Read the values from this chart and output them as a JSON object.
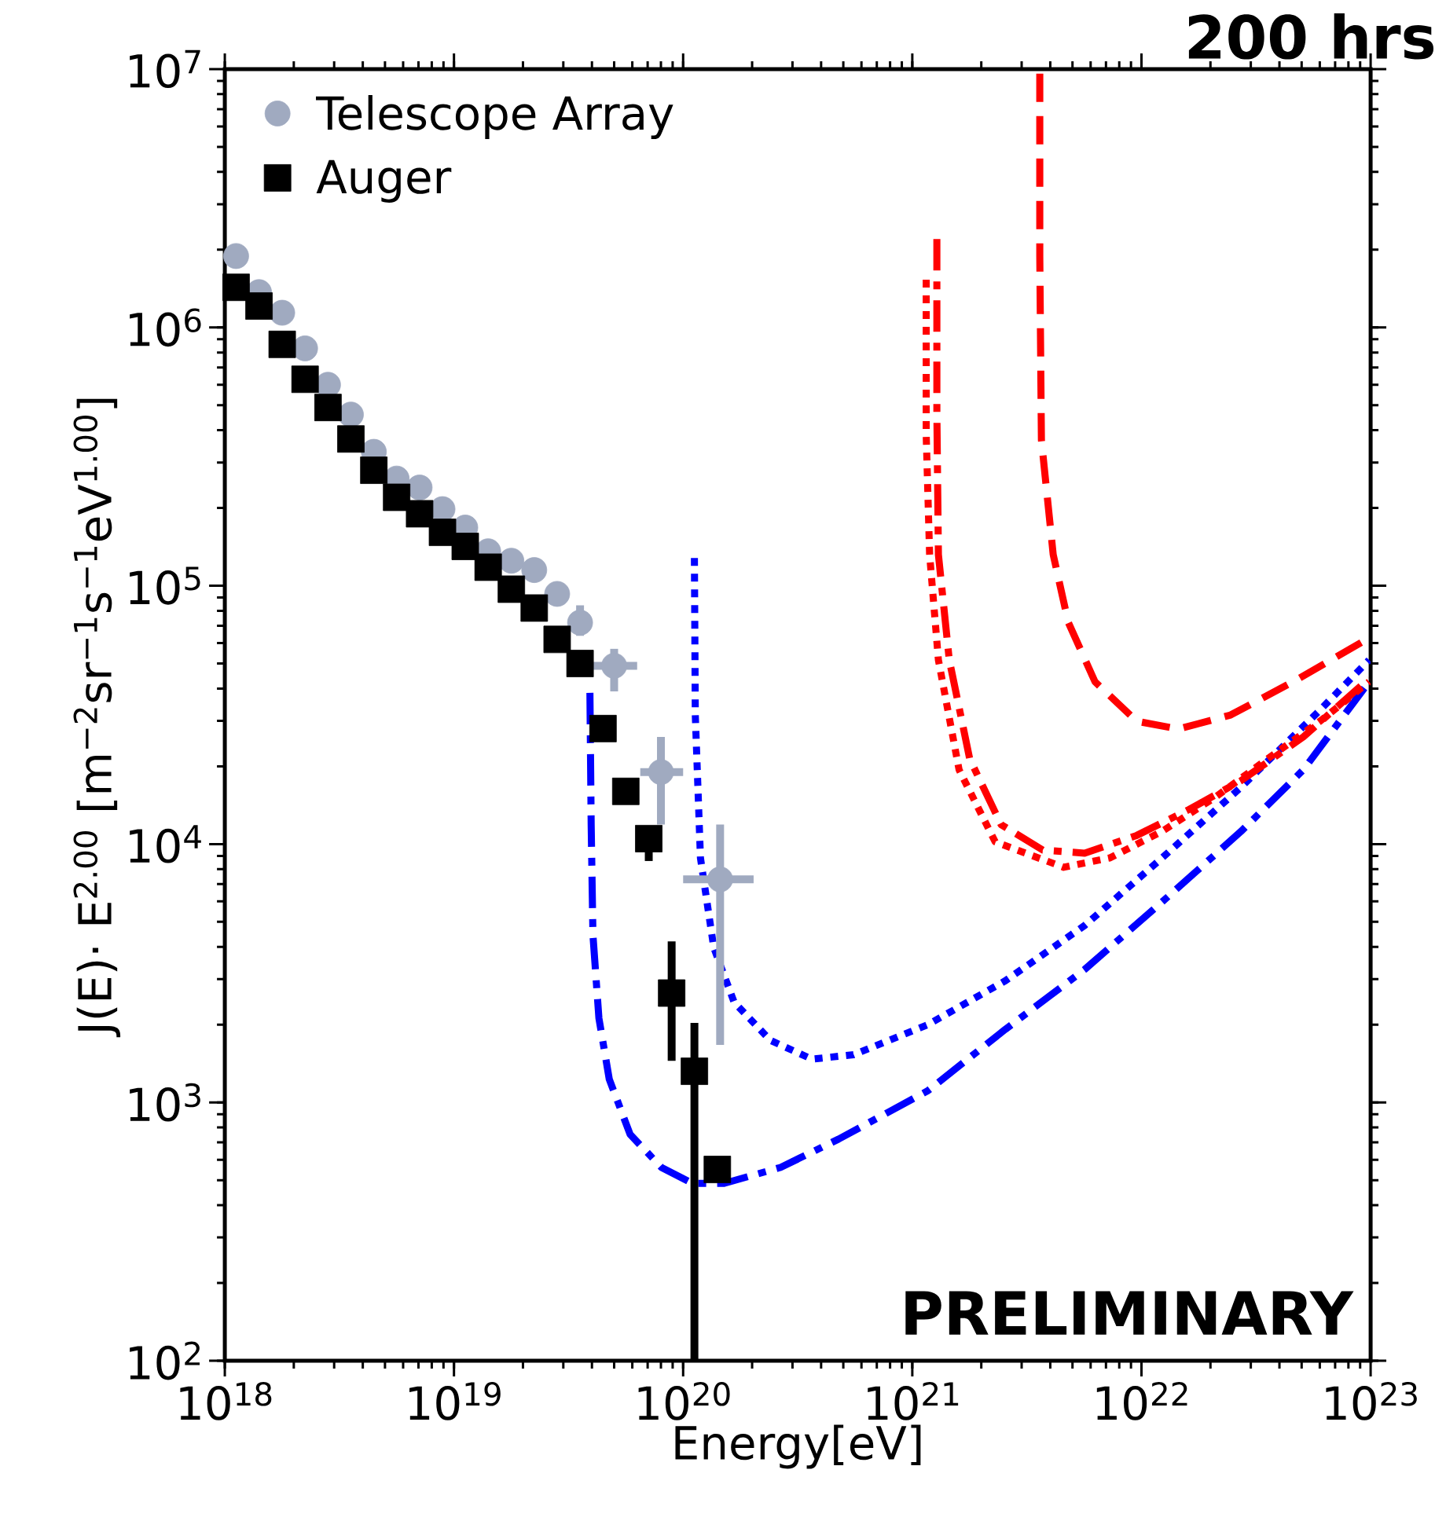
{
  "chart_data": {
    "type": "line",
    "title": "200 hrs",
    "xlabel": "Energy[eV]",
    "ylabel": "J(E)· E$^{2.00}$ [m$^{−2}$sr$^{−1}$s$^{−1}$eV$^{1.00}$]",
    "log": "xy",
    "legend": "top left",
    "xlim": [
      1e+18,
      1e+23
    ],
    "ylim": [
      100,
      10000000.0
    ],
    "xticks": [
      {
        "value": 1e+18,
        "label": "10$^{18}$"
      },
      {
        "value": 1e+19,
        "label": "10$^{19}$"
      },
      {
        "value": 1e+20,
        "label": "10$^{20}$"
      },
      {
        "value": 1e+21,
        "label": "10$^{21}$"
      },
      {
        "value": 1e+22,
        "label": "10$^{22}$"
      },
      {
        "value": 1e+23,
        "label": "10$^{23}$"
      }
    ],
    "yticks": [
      {
        "value": 100,
        "label": "10$^{2}$"
      },
      {
        "value": 1000,
        "label": "10$^{3}$"
      },
      {
        "value": 10000,
        "label": "10$^{4}$"
      },
      {
        "value": 100000,
        "label": "10$^{5}$"
      },
      {
        "value": 1000000,
        "label": "10$^{6}$"
      },
      {
        "value": 10000000,
        "label": "10$^{7}$"
      }
    ],
    "annotations": [
      "PRELIMINARY"
    ],
    "series": [
      {
        "name": "Telescope Array",
        "type": "scatter",
        "marker": "circle",
        "color": "#a0aac0",
        "x": [
          1.12e+18,
          1.41e+18,
          1.78e+18,
          2.24e+18,
          2.82e+18,
          3.55e+18,
          4.47e+18,
          5.62e+18,
          7.08e+18,
          8.91e+18,
          1.12e+19,
          1.41e+19,
          1.78e+19,
          2.24e+19,
          2.82e+19,
          3.55e+19,
          5e+19,
          8e+19,
          1.45e+20
        ],
        "values": [
          1890000.0,
          1370000.0,
          1140000.0,
          830000.0,
          600000.0,
          460000.0,
          330000.0,
          260000.0,
          240000.0,
          198000.0,
          168000.0,
          136000.0,
          125000.0,
          115000.0,
          93000.0,
          72000.0,
          49000.0,
          19000.0,
          7300.0
        ],
        "errors": [
          null,
          null,
          null,
          null,
          null,
          null,
          null,
          null,
          null,
          null,
          null,
          null,
          null,
          null,
          null,
          [
            64000.0,
            84000.0
          ],
          [
            39000.0,
            57000.0
          ],
          [
            11900.0,
            26000.0
          ],
          [
            1670.0,
            11900.0
          ]
        ],
        "xerrors": [
          null,
          null,
          null,
          null,
          null,
          null,
          null,
          null,
          null,
          null,
          null,
          null,
          null,
          null,
          null,
          null,
          [
            3.97e+19,
            6.3e+19
          ],
          [
            6.5e+19,
            1e+20
          ],
          [
            1e+20,
            2.03e+20
          ]
        ]
      },
      {
        "name": "Auger",
        "type": "scatter",
        "marker": "square",
        "color": "#000000",
        "x": [
          1.12e+18,
          1.41e+18,
          1.78e+18,
          2.24e+18,
          2.82e+18,
          3.55e+18,
          4.47e+18,
          5.62e+18,
          7.08e+18,
          8.91e+18,
          1.12e+19,
          1.41e+19,
          1.78e+19,
          2.24e+19,
          2.82e+19,
          3.55e+19,
          4.47e+19,
          5.62e+19,
          7.08e+19,
          8.91e+19,
          1.12e+20,
          1.41e+20
        ],
        "values": [
          1430000.0,
          1210000.0,
          860000.0,
          630000.0,
          490000.0,
          370000.0,
          280000.0,
          220000.0,
          190000.0,
          161000.0,
          142000.0,
          118000.0,
          97000.0,
          82000.0,
          62000.0,
          50000.0,
          28000.0,
          16000.0,
          10500.0,
          2650.0,
          1320.0,
          550
        ],
        "errors": [
          null,
          null,
          null,
          null,
          null,
          null,
          null,
          null,
          null,
          null,
          null,
          null,
          null,
          null,
          null,
          null,
          null,
          null,
          [
            8600.0,
            11500.0
          ],
          [
            1450.0,
            4200.0
          ],
          [
            100,
            2030.0
          ],
          null
        ]
      },
      {
        "line_style": "dashdot",
        "color": "#0000ff",
        "x": [
          3.92e+19,
          3.97e+19,
          4.04e+19,
          4.29e+19,
          4.76e+19,
          5.87e+19,
          8.04e+19,
          1.1e+20,
          1.51e+20,
          2.66e+20,
          4.77e+20,
          1.17e+21,
          2.55e+21,
          5.65e+21,
          1.23e+22,
          2.72e+22,
          5.09e+22,
          9.85e+22
        ],
        "values": [
          38500.0,
          11900.0,
          4450.0,
          2120.0,
          1230.0,
          752,
          560,
          486,
          486,
          560,
          721,
          1110.0,
          1920.0,
          3270.0,
          5970.0,
          11200.0,
          19400.0,
          42500.0
        ]
      },
      {
        "line_style": "dotted",
        "color": "#0000ff",
        "x": [
          1.12e+20,
          1.13e+20,
          1.19e+20,
          1.36e+20,
          1.67e+20,
          2.4e+20,
          3.65e+20,
          5.54e+20,
          1.17e+21,
          2.55e+21,
          5.65e+21,
          1.23e+22,
          2.72e+22,
          6.01e+22,
          9.85e+22
        ],
        "values": [
          128000.0,
          31600.0,
          8840.0,
          3980.0,
          2440.0,
          1740.0,
          1470.0,
          1530.0,
          2000.0,
          2960.0,
          4840.0,
          8840.0,
          16600.0,
          33000.0,
          51600.0
        ]
      },
      {
        "line_style": "dashed",
        "color": "#ff0000",
        "x": [
          3.6e+21,
          3.6e+21,
          3.66e+21,
          4.12e+21,
          4.79e+21,
          6.27e+21,
          9.53e+21,
          1.45e+22,
          2.45e+22,
          4.59e+22,
          9.85e+22
        ],
        "values": [
          9600000.0,
          1890000.0,
          367000.0,
          132000.0,
          72300.0,
          42500.0,
          29900.0,
          27900.0,
          31600.0,
          42500.0,
          62800.0
        ]
      },
      {
        "line_style": "dashdot",
        "color": "#ff0000",
        "x": [
          1.28e+21,
          1.28e+21,
          1.3e+21,
          1.45e+21,
          1.78e+21,
          2.44e+21,
          3.71e+21,
          5.65e+21,
          9.53e+21,
          1.61e+22,
          2.72e+22,
          5.09e+22,
          9.85e+22
        ],
        "values": [
          2200000.0,
          466000.0,
          132000.0,
          51600.0,
          21400.0,
          11900.0,
          9480.0,
          9220.0,
          10800.0,
          13600.0,
          17600.0,
          26000.0,
          43700.0
        ]
      },
      {
        "line_style": "dotted",
        "color": "#ff0000",
        "x": [
          1.15e+21,
          1.15e+21,
          1.19e+21,
          1.3e+21,
          1.6e+21,
          2.3e+21,
          4.58e+21,
          7.28e+21,
          1.23e+22,
          2.08e+22,
          3.56e+22,
          6.01e+22,
          9.85e+22
        ],
        "values": [
          1530000.0,
          383000.0,
          132000.0,
          51600.0,
          19400.0,
          10200.0,
          8130.0,
          8840.0,
          11200.0,
          15100.0,
          21400.0,
          29900.0,
          42500.0
        ]
      }
    ]
  }
}
